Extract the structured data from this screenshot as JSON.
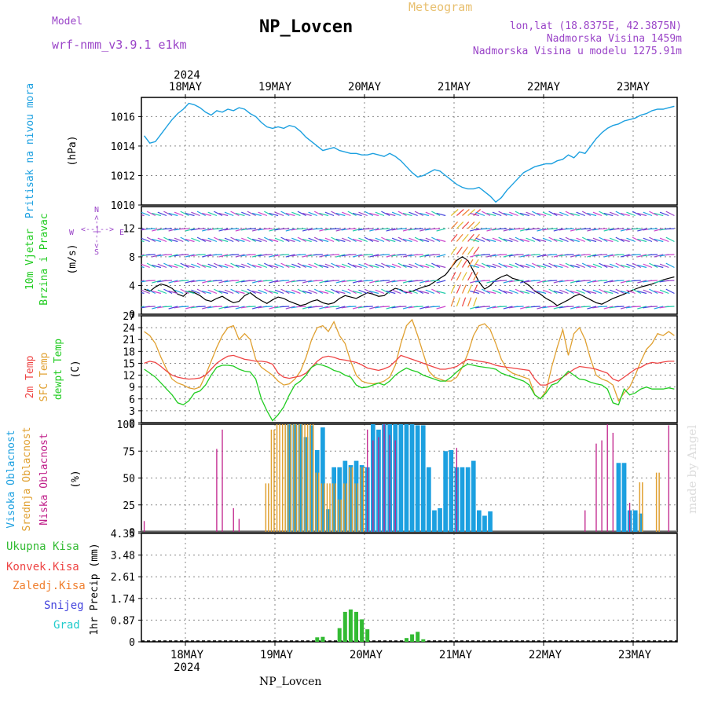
{
  "header": {
    "title": "NP_Lovcen",
    "model_label": "Model",
    "model_name": "wrf-nmm_v3.9.1 e1km",
    "meteogram_label": "Meteogram",
    "lonlat": "lon,lat (18.8375E, 42.3875N)",
    "altitude": "Nadmorska Visina 1459m",
    "model_altitude": "Nadmorska Visina u modelu 1275.91m",
    "watermark": "made by Angel",
    "footer_station": "NP_Lovcen"
  },
  "colors": {
    "pressure": "#1ca0e0",
    "wind_label": "#22cc22",
    "purple": "#9a44c8",
    "temp2m": "#ee4444",
    "sfc": "#e0a030",
    "dewpt": "#22cc22",
    "cloud_high": "#1ca0e0",
    "cloud_mid": "#e0a030",
    "cloud_low": "#c0208a",
    "precip_total": "#33bb33",
    "precip_conv": "#ee4444",
    "precip_frz": "#f08030",
    "snow": "#4444dd",
    "hail": "#22cccc",
    "sfc_line": "#888888"
  },
  "chart_data": [
    {
      "type": "line",
      "ylabel": "Pritisak na nivou mora",
      "unit": "(hPa)",
      "ylim": [
        1010,
        1017.3
      ],
      "yticks": [
        "1010",
        "1012",
        "1014",
        "1016"
      ],
      "xaxis_top": {
        "year": "2024",
        "labels": [
          "18MAY",
          "19MAY",
          "20MAY",
          "21MAY",
          "22MAY",
          "23MAY"
        ]
      },
      "grid": true,
      "series": [
        {
          "values": [
            1014.7,
            1014.2,
            1014.3,
            1014.8,
            1015.3,
            1015.8,
            1016.2,
            1016.5,
            1016.9,
            1016.8,
            1016.6,
            1016.3,
            1016.1,
            1016.4,
            1016.3,
            1016.5,
            1016.4,
            1016.6,
            1016.5,
            1016.2,
            1016.0,
            1015.6,
            1015.3,
            1015.2,
            1015.3,
            1015.2,
            1015.4,
            1015.3,
            1015.0,
            1014.6,
            1014.3,
            1014.0,
            1013.7,
            1013.8,
            1013.9,
            1013.7,
            1013.6,
            1013.5,
            1013.5,
            1013.4,
            1013.4,
            1013.5,
            1013.4,
            1013.3,
            1013.5,
            1013.3,
            1013.0,
            1012.6,
            1012.2,
            1011.9,
            1012.0,
            1012.2,
            1012.4,
            1012.3,
            1012.0,
            1011.7,
            1011.4,
            1011.2,
            1011.1,
            1011.1,
            1011.2,
            1010.9,
            1010.6,
            1010.2,
            1010.5,
            1011.0,
            1011.4,
            1011.8,
            1012.2,
            1012.4,
            1012.6,
            1012.7,
            1012.8,
            1012.8,
            1013.0,
            1013.1,
            1013.4,
            1013.2,
            1013.6,
            1013.5,
            1014.0,
            1014.5,
            1014.9,
            1015.2,
            1015.4,
            1015.5,
            1015.7,
            1015.8,
            1015.9,
            1016.1,
            1016.2,
            1016.4,
            1016.5,
            1016.5,
            1016.6,
            1016.7
          ]
        }
      ]
    },
    {
      "type": "barbs",
      "ylabel": [
        "10m Vjetar",
        "Brzina i Pravac"
      ],
      "unit": "(m/s)",
      "direction_key": {
        "n": "N",
        "arrow": "<--|-->",
        "w": "W",
        "e": "E",
        "s": "S"
      },
      "ylim": [
        0,
        15
      ],
      "yticks": [
        "0",
        "4",
        "8",
        "12"
      ],
      "series": [
        {
          "name": "speed",
          "values": [
            3.5,
            3.2,
            3.8,
            4.2,
            4.0,
            3.6,
            2.8,
            2.5,
            3.2,
            3.0,
            2.6,
            2.0,
            1.8,
            2.2,
            2.5,
            2.0,
            1.6,
            1.8,
            2.6,
            3.0,
            2.4,
            1.9,
            1.5,
            2.0,
            2.4,
            2.2,
            1.8,
            1.5,
            1.2,
            1.4,
            1.8,
            2.0,
            1.6,
            1.4,
            1.6,
            2.2,
            2.6,
            2.4,
            2.2,
            2.6,
            3.0,
            2.8,
            2.5,
            2.6,
            3.2,
            3.6,
            3.4,
            3.0,
            3.2,
            3.5,
            3.8,
            4.0,
            4.5,
            5.0,
            5.5,
            6.5,
            7.5,
            8.0,
            7.5,
            6.0,
            4.5,
            3.5,
            4.0,
            4.8,
            5.2,
            5.5,
            5.0,
            4.8,
            4.5,
            4.0,
            3.2,
            2.8,
            2.2,
            1.8,
            1.2,
            1.6,
            2.0,
            2.5,
            2.8,
            2.4,
            2.0,
            1.6,
            1.4,
            1.8,
            2.2,
            2.5,
            2.8,
            3.2,
            3.5,
            3.8,
            4.0,
            4.2,
            4.5,
            4.8,
            5.0,
            5.2
          ]
        }
      ]
    },
    {
      "type": "line",
      "ylabel": [
        "2m Temp",
        "SFC Temp",
        "dewpt Temp"
      ],
      "unit": "(C)",
      "ylim": [
        0,
        27
      ],
      "yticks": [
        "0",
        "3",
        "6",
        "9",
        "12",
        "15",
        "18",
        "21",
        "24",
        "27"
      ],
      "series": [
        {
          "name": "2m Temp",
          "values": [
            15.0,
            15.5,
            15.2,
            14.2,
            13.0,
            12.0,
            11.5,
            11.2,
            11.0,
            11.1,
            11.3,
            12.0,
            13.5,
            15.0,
            16.0,
            16.8,
            17.0,
            16.5,
            16.0,
            15.8,
            15.5,
            15.5,
            15.3,
            14.8,
            12.5,
            11.5,
            11.2,
            11.5,
            11.8,
            12.5,
            14.0,
            15.5,
            16.5,
            16.8,
            16.5,
            16.0,
            15.8,
            15.5,
            15.2,
            14.6,
            13.8,
            13.5,
            13.2,
            13.6,
            14.2,
            15.5,
            17.0,
            16.5,
            16.0,
            15.5,
            15.0,
            14.5,
            14.0,
            13.5,
            13.5,
            13.8,
            14.2,
            15.2,
            16.0,
            15.8,
            15.5,
            15.3,
            15.0,
            14.5,
            14.2,
            14.0,
            13.8,
            13.6,
            13.4,
            13.2,
            11.0,
            9.5,
            9.5,
            10.2,
            10.8,
            11.5,
            12.5,
            13.5,
            14.2,
            14.0,
            13.8,
            13.5,
            13.0,
            12.5,
            11.0,
            10.5,
            11.5,
            12.5,
            13.5,
            14.0,
            14.8,
            15.2,
            15.0,
            15.3,
            15.5,
            15.5
          ]
        },
        {
          "name": "SFC Temp",
          "values": [
            23.0,
            22.0,
            20.0,
            16.5,
            13.5,
            11.0,
            10.0,
            9.5,
            8.8,
            8.5,
            9.0,
            12.0,
            15.5,
            19.0,
            22.0,
            24.0,
            24.5,
            21.0,
            22.5,
            21.0,
            16.0,
            14.0,
            13.0,
            12.0,
            10.5,
            9.5,
            9.8,
            11.0,
            13.0,
            16.5,
            21.0,
            24.0,
            24.5,
            23.0,
            25.5,
            22.0,
            20.0,
            15.5,
            12.0,
            10.5,
            10.0,
            9.8,
            10.0,
            10.5,
            11.5,
            14.5,
            20.0,
            24.5,
            26.0,
            22.0,
            17.5,
            13.0,
            11.5,
            11.0,
            10.5,
            10.5,
            11.5,
            14.0,
            17.5,
            22.0,
            24.5,
            25.0,
            23.5,
            20.0,
            16.0,
            13.5,
            12.5,
            12.0,
            11.5,
            11.0,
            7.0,
            6.0,
            8.0,
            14.0,
            19.0,
            23.5,
            17.0,
            22.5,
            24.0,
            21.0,
            16.0,
            12.0,
            11.0,
            10.5,
            9.5,
            5.5,
            7.5,
            9.0,
            12.0,
            15.5,
            18.5,
            20.0,
            22.5,
            22.0,
            23.0,
            22.0
          ]
        },
        {
          "name": "dewpt Temp",
          "values": [
            13.5,
            12.5,
            11.5,
            10.0,
            8.5,
            7.0,
            5.0,
            4.5,
            5.5,
            7.5,
            8.0,
            9.5,
            12.0,
            14.0,
            14.5,
            14.5,
            14.3,
            13.5,
            13.0,
            12.8,
            11.0,
            6.0,
            3.0,
            0.5,
            2.0,
            4.0,
            7.0,
            9.5,
            10.5,
            12.0,
            14.0,
            14.8,
            14.5,
            14.0,
            13.2,
            12.8,
            12.0,
            11.5,
            9.5,
            8.8,
            9.0,
            9.5,
            10.0,
            9.5,
            10.5,
            12.0,
            13.0,
            13.8,
            13.2,
            12.8,
            12.0,
            11.5,
            11.0,
            10.5,
            10.5,
            11.5,
            12.8,
            14.0,
            14.8,
            14.5,
            14.2,
            14.0,
            13.8,
            13.5,
            12.5,
            12.0,
            11.5,
            11.0,
            10.5,
            9.5,
            7.0,
            6.0,
            7.5,
            9.5,
            10.0,
            11.5,
            13.0,
            12.0,
            11.0,
            10.8,
            10.2,
            9.8,
            9.5,
            8.5,
            5.0,
            4.5,
            8.5,
            7.0,
            7.5,
            8.5,
            9.0,
            8.5,
            8.5,
            8.5,
            8.8,
            8.5
          ]
        }
      ]
    },
    {
      "type": "bar",
      "ylabel": [
        "Visoka Oblacnost",
        "Srednja Oblacnost",
        "Niska Oblacnost"
      ],
      "unit": "(%)",
      "ylim": [
        0,
        100
      ],
      "yticks": [
        "0",
        "25",
        "50",
        "75",
        "100"
      ],
      "series": [
        {
          "name": "Visoka Oblacnost",
          "values": [
            0,
            0,
            0,
            0,
            0,
            0,
            0,
            0,
            0,
            0,
            0,
            0,
            0,
            0,
            0,
            0,
            0,
            0,
            0,
            0,
            0,
            0,
            0,
            0,
            0,
            0,
            100,
            100,
            100,
            88,
            99,
            76,
            97,
            21,
            60,
            60,
            66,
            62,
            66,
            62,
            60,
            100,
            95,
            100,
            100,
            100,
            100,
            100,
            100,
            99,
            99,
            60,
            20,
            22,
            75,
            76,
            60,
            60,
            60,
            66,
            20,
            15,
            19,
            0,
            0,
            0,
            0,
            0,
            0,
            0,
            0,
            0,
            0,
            0,
            0,
            0,
            0,
            0,
            0,
            0,
            0,
            0,
            0,
            0,
            0,
            64,
            64,
            20,
            20,
            17,
            0,
            0,
            0,
            0,
            0,
            0
          ]
        },
        {
          "name": "Srednja Oblacnost",
          "values": [
            0,
            0,
            0,
            0,
            0,
            0,
            0,
            0,
            0,
            0,
            0,
            0,
            0,
            0,
            0,
            0,
            0,
            0,
            0,
            0,
            0,
            0,
            45,
            95,
            100,
            100,
            100,
            100,
            100,
            100,
            100,
            55,
            45,
            45,
            45,
            30,
            45,
            60,
            45,
            60,
            0,
            0,
            0,
            0,
            0,
            0,
            0,
            0,
            0,
            0,
            0,
            0,
            0,
            0,
            0,
            0,
            0,
            0,
            0,
            0,
            0,
            0,
            0,
            0,
            0,
            0,
            0,
            0,
            0,
            0,
            0,
            0,
            0,
            0,
            0,
            0,
            0,
            0,
            0,
            0,
            0,
            0,
            0,
            0,
            0,
            0,
            0,
            0,
            0,
            46,
            0,
            0,
            55,
            0,
            0,
            0
          ]
        },
        {
          "name": "Niska Oblacnost",
          "values": [
            10,
            0,
            0,
            0,
            0,
            0,
            0,
            0,
            0,
            0,
            0,
            0,
            0,
            77,
            95,
            0,
            22,
            12,
            0,
            0,
            0,
            0,
            0,
            0,
            0,
            0,
            0,
            0,
            0,
            0,
            0,
            0,
            0,
            0,
            0,
            0,
            0,
            0,
            0,
            0,
            95,
            85,
            88,
            100,
            90,
            85,
            0,
            0,
            0,
            0,
            0,
            0,
            0,
            0,
            0,
            0,
            78,
            0,
            0,
            0,
            0,
            0,
            0,
            0,
            0,
            0,
            0,
            0,
            0,
            0,
            0,
            0,
            0,
            0,
            0,
            0,
            0,
            0,
            0,
            20,
            0,
            82,
            85,
            100,
            92,
            0,
            0,
            27,
            0,
            0,
            0,
            0,
            0,
            0,
            99,
            0
          ]
        }
      ]
    },
    {
      "type": "bar",
      "ylabel": [
        "Ukupna Kisa",
        "Konvek.Kisa",
        "Zaledj.Kisa",
        "Snijeg",
        "Grad"
      ],
      "unit": "1hr Precip (mm)",
      "ylim": [
        0,
        4.35
      ],
      "yticks": [
        "0",
        "0.87",
        "1.74",
        "2.61",
        "3.48",
        "4.35"
      ],
      "xaxis_bottom": {
        "year": "2024",
        "labels": [
          "18MAY",
          "19MAY",
          "20MAY",
          "21MAY",
          "22MAY",
          "23MAY"
        ]
      },
      "series": [
        {
          "name": "Ukupna Kisa",
          "values": [
            0,
            0,
            0,
            0,
            0,
            0,
            0,
            0,
            0,
            0,
            0,
            0,
            0,
            0,
            0,
            0,
            0,
            0,
            0,
            0,
            0,
            0,
            0,
            0,
            0,
            0,
            0,
            0,
            0,
            0,
            0,
            0.18,
            0.2,
            0,
            0,
            0.55,
            1.2,
            1.3,
            1.2,
            0.9,
            0.5,
            0,
            0,
            0,
            0,
            0,
            0,
            0.15,
            0.3,
            0.4,
            0.1,
            0,
            0,
            0,
            0,
            0,
            0,
            0,
            0,
            0,
            0,
            0,
            0,
            0,
            0,
            0,
            0,
            0,
            0,
            0,
            0,
            0,
            0,
            0,
            0,
            0,
            0,
            0,
            0,
            0,
            0,
            0,
            0,
            0,
            0,
            0,
            0,
            0,
            0,
            0,
            0,
            0,
            0,
            0,
            0,
            0,
            0,
            0
          ]
        },
        {
          "name": "Konvek.Kisa",
          "values": [
            0,
            0,
            0,
            0,
            0,
            0,
            0,
            0,
            0,
            0,
            0,
            0,
            0,
            0,
            0,
            0,
            0,
            0,
            0,
            0,
            0,
            0,
            0,
            0,
            0,
            0,
            0,
            0,
            0,
            0,
            0,
            0,
            0,
            0,
            0,
            0,
            0,
            0,
            0,
            0,
            0,
            0,
            0,
            0,
            0,
            0,
            0,
            0,
            0,
            0,
            0,
            0,
            0,
            0,
            0,
            0,
            0,
            0,
            0,
            0,
            0,
            0,
            0,
            0,
            0,
            0,
            0,
            0,
            0,
            0,
            0,
            0,
            0,
            0,
            0,
            0,
            0,
            0,
            0,
            0,
            0,
            0,
            0,
            0,
            0,
            0,
            0,
            0,
            0,
            0,
            0,
            0,
            0,
            0,
            0,
            0
          ]
        }
      ]
    }
  ]
}
